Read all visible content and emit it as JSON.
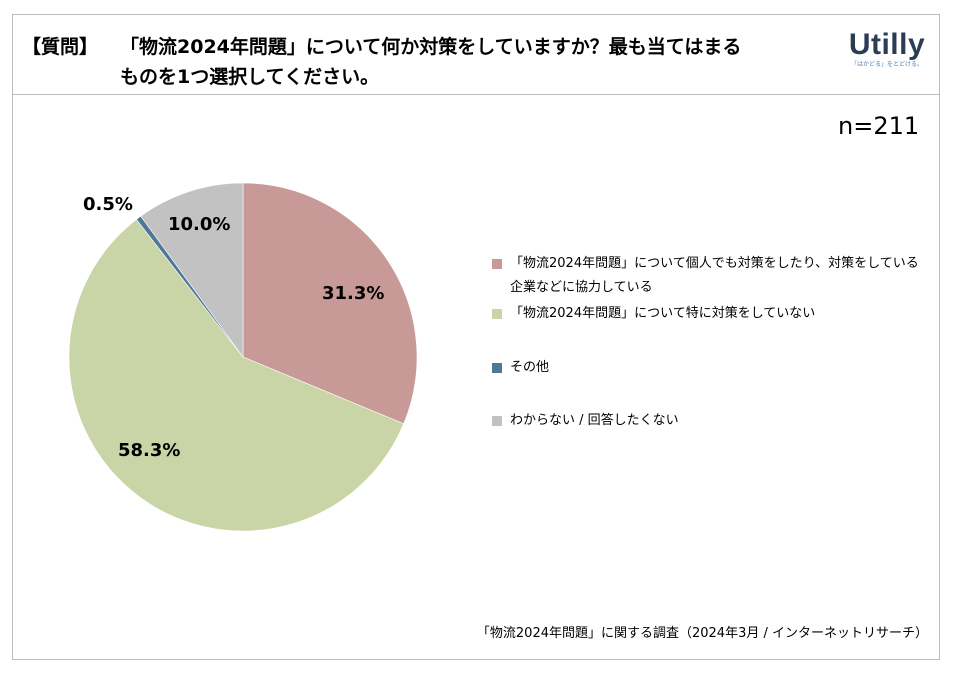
{
  "question": {
    "tag": "【質問】",
    "line1": "「物流2024年問題」について何か対策をしていますか？最も当てはまる",
    "line2": "ものを1つ選択してください。"
  },
  "logo": {
    "word": "Utilly",
    "tagline": "「はかどる」をとどける。"
  },
  "sample_size": "n=211",
  "chart_data": {
    "type": "pie",
    "title": "",
    "start_angle": "12 o'clock",
    "direction": "clockwise",
    "slices": [
      {
        "label": "「物流2024年問題」について個人でも対策をしたり、対策をしている企業などに協力している",
        "value": 31.3,
        "display": "31.3%",
        "color": "#c89a97"
      },
      {
        "label": "「物流2024年問題」について特に対策をしていない",
        "value": 58.3,
        "display": "58.3%",
        "color": "#c9d5a7"
      },
      {
        "label": "その他",
        "value": 0.5,
        "display": "0.5%",
        "color": "#4f7796"
      },
      {
        "label": "わからない / 回答したくない",
        "value": 10.0,
        "display": "10.0%",
        "color": "#c2c2c2"
      }
    ],
    "legend_position": "right"
  },
  "source": "「物流2024年問題」に関する調査（2024年3月 / インターネットリサーチ）"
}
